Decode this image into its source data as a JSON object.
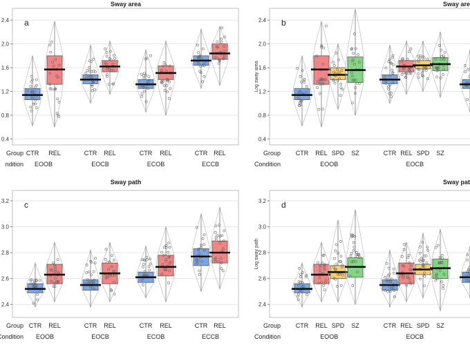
{
  "colors": {
    "CTR": "#7aa6e8",
    "REL": "#ef8585",
    "SPD": "#f6cf72",
    "SZ": "#86d486"
  },
  "chart_data": [
    {
      "type": "box",
      "panel_label": "a",
      "title": "Sway area",
      "ylabel": "",
      "ylim": [
        0.3,
        2.6
      ],
      "yticks": [
        0.4,
        0.8,
        1.2,
        1.6,
        2.0,
        2.4
      ],
      "axis_text": {
        "group": "Group",
        "condition": "ndition"
      },
      "groups": [
        {
          "condition": "EOOB",
          "boxes": [
            {
              "name": "CTR",
              "median": 1.14,
              "q1": 1.06,
              "q3": 1.25,
              "min": 0.62,
              "max": 1.8
            },
            {
              "name": "REL",
              "median": 1.57,
              "q1": 1.32,
              "q3": 1.8,
              "min": 0.6,
              "max": 2.38
            }
          ]
        },
        {
          "condition": "EOCB",
          "boxes": [
            {
              "name": "CTR",
              "median": 1.4,
              "q1": 1.33,
              "q3": 1.48,
              "min": 1.0,
              "max": 1.98
            },
            {
              "name": "REL",
              "median": 1.62,
              "q1": 1.53,
              "q3": 1.72,
              "min": 1.15,
              "max": 2.05
            }
          ]
        },
        {
          "condition": "ECOB",
          "boxes": [
            {
              "name": "CTR",
              "median": 1.32,
              "q1": 1.25,
              "q3": 1.4,
              "min": 0.85,
              "max": 1.9
            },
            {
              "name": "REL",
              "median": 1.51,
              "q1": 1.4,
              "q3": 1.63,
              "min": 0.8,
              "max": 2.05
            }
          ]
        },
        {
          "condition": "ECCB",
          "boxes": [
            {
              "name": "CTR",
              "median": 1.72,
              "q1": 1.64,
              "q3": 1.8,
              "min": 1.25,
              "max": 2.25
            },
            {
              "name": "REL",
              "median": 1.84,
              "q1": 1.74,
              "q3": 2.0,
              "min": 1.3,
              "max": 2.3
            }
          ]
        }
      ]
    },
    {
      "type": "box",
      "panel_label": "b",
      "title": "Sway are",
      "ylabel": "Log sway area",
      "ylim": [
        0.3,
        2.6
      ],
      "yticks": [
        0.4,
        0.8,
        1.2,
        1.6,
        2.0,
        2.4
      ],
      "axis_text": {
        "group": "Group",
        "condition": "Condition"
      },
      "groups": [
        {
          "condition": "EOOB",
          "boxes": [
            {
              "name": "CTR",
              "median": 1.14,
              "q1": 1.06,
              "q3": 1.25,
              "min": 0.62,
              "max": 1.8
            },
            {
              "name": "REL",
              "median": 1.57,
              "q1": 1.32,
              "q3": 1.8,
              "min": 0.6,
              "max": 2.38
            },
            {
              "name": "SPD",
              "median": 1.48,
              "q1": 1.4,
              "q3": 1.6,
              "min": 0.9,
              "max": 2.0
            },
            {
              "name": "SZ",
              "median": 1.56,
              "q1": 1.35,
              "q3": 1.78,
              "min": 0.8,
              "max": 2.58
            }
          ]
        },
        {
          "condition": "EOCB",
          "boxes": [
            {
              "name": "CTR",
              "median": 1.4,
              "q1": 1.33,
              "q3": 1.48,
              "min": 1.0,
              "max": 1.98
            },
            {
              "name": "REL",
              "median": 1.62,
              "q1": 1.53,
              "q3": 1.72,
              "min": 1.15,
              "max": 2.05
            },
            {
              "name": "SPD",
              "median": 1.64,
              "q1": 1.58,
              "q3": 1.72,
              "min": 1.2,
              "max": 2.05
            },
            {
              "name": "SZ",
              "median": 1.66,
              "q1": 1.55,
              "q3": 1.77,
              "min": 1.1,
              "max": 2.2
            }
          ]
        },
        {
          "condition": "",
          "partial": true,
          "boxes": [
            {
              "name": "",
              "median": 1.32,
              "q1": 1.25,
              "q3": 1.4,
              "min": 0.85,
              "max": 1.9
            }
          ]
        }
      ]
    },
    {
      "type": "box",
      "panel_label": "c",
      "title": "Sway path",
      "ylabel": "",
      "ylim": [
        2.3,
        3.28
      ],
      "yticks": [
        2.4,
        2.6,
        2.8,
        3.0,
        3.2
      ],
      "axis_text": {
        "group": "Group",
        "condition": "Condition"
      },
      "groups": [
        {
          "condition": "EOOB",
          "boxes": [
            {
              "name": "CTR",
              "median": 2.52,
              "q1": 2.49,
              "q3": 2.56,
              "min": 2.38,
              "max": 2.72
            },
            {
              "name": "REL",
              "median": 2.63,
              "q1": 2.56,
              "q3": 2.71,
              "min": 2.42,
              "max": 2.88
            }
          ]
        },
        {
          "condition": "EOCB",
          "boxes": [
            {
              "name": "CTR",
              "median": 2.55,
              "q1": 2.51,
              "q3": 2.59,
              "min": 2.38,
              "max": 2.82
            },
            {
              "name": "REL",
              "median": 2.64,
              "q1": 2.56,
              "q3": 2.72,
              "min": 2.42,
              "max": 2.88
            }
          ]
        },
        {
          "condition": "ECOB",
          "boxes": [
            {
              "name": "CTR",
              "median": 2.61,
              "q1": 2.57,
              "q3": 2.65,
              "min": 2.45,
              "max": 2.85
            },
            {
              "name": "REL",
              "median": 2.69,
              "q1": 2.62,
              "q3": 2.78,
              "min": 2.42,
              "max": 3.0
            }
          ]
        },
        {
          "condition": "ECCB",
          "boxes": [
            {
              "name": "CTR",
              "median": 2.77,
              "q1": 2.7,
              "q3": 2.83,
              "min": 2.5,
              "max": 3.1
            },
            {
              "name": "REL",
              "median": 2.8,
              "q1": 2.72,
              "q3": 2.89,
              "min": 2.52,
              "max": 3.15
            }
          ]
        }
      ]
    },
    {
      "type": "box",
      "panel_label": "d",
      "title": "Sway pat",
      "ylabel": "Log sway path",
      "ylim": [
        2.3,
        3.28
      ],
      "yticks": [
        2.4,
        2.6,
        2.8,
        3.0,
        3.2
      ],
      "axis_text": {
        "group": "Group",
        "condition": "Condition"
      },
      "groups": [
        {
          "condition": "EOOB",
          "boxes": [
            {
              "name": "CTR",
              "median": 2.52,
              "q1": 2.49,
              "q3": 2.56,
              "min": 2.38,
              "max": 2.72
            },
            {
              "name": "REL",
              "median": 2.63,
              "q1": 2.56,
              "q3": 2.71,
              "min": 2.42,
              "max": 2.88
            },
            {
              "name": "SPD",
              "median": 2.65,
              "q1": 2.6,
              "q3": 2.7,
              "min": 2.42,
              "max": 3.05
            },
            {
              "name": "SZ",
              "median": 2.69,
              "q1": 2.61,
              "q3": 2.76,
              "min": 2.4,
              "max": 3.13
            }
          ]
        },
        {
          "condition": "EOCB",
          "boxes": [
            {
              "name": "CTR",
              "median": 2.55,
              "q1": 2.51,
              "q3": 2.59,
              "min": 2.38,
              "max": 2.82
            },
            {
              "name": "REL",
              "median": 2.64,
              "q1": 2.56,
              "q3": 2.72,
              "min": 2.42,
              "max": 2.88
            },
            {
              "name": "SPD",
              "median": 2.67,
              "q1": 2.63,
              "q3": 2.71,
              "min": 2.45,
              "max": 2.95
            },
            {
              "name": "SZ",
              "median": 2.68,
              "q1": 2.6,
              "q3": 2.75,
              "min": 2.35,
              "max": 2.98
            }
          ]
        },
        {
          "condition": "",
          "partial": true,
          "boxes": [
            {
              "name": "",
              "median": 2.61,
              "q1": 2.57,
              "q3": 2.65,
              "min": 2.45,
              "max": 2.85
            }
          ]
        }
      ]
    }
  ]
}
